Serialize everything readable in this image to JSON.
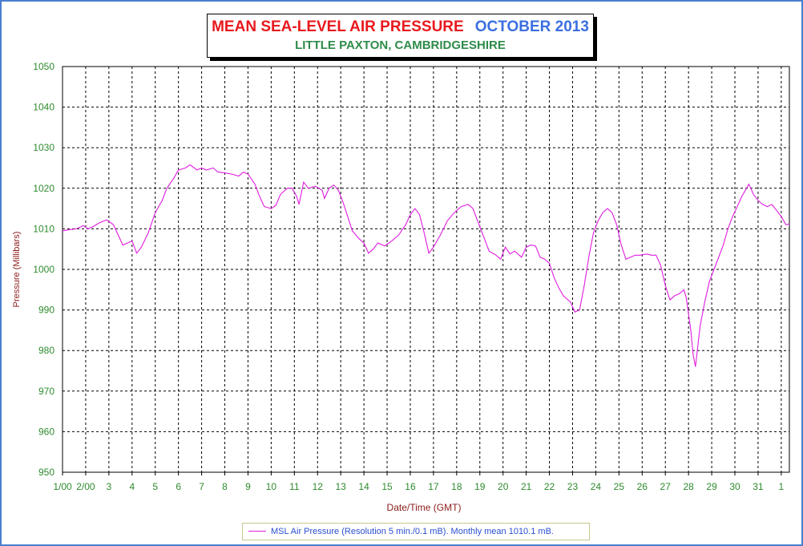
{
  "chart_data": {
    "type": "line",
    "title": "MEAN SEA-LEVEL AIR PRESSURE",
    "title_period": "OCTOBER 2013",
    "subtitle": "LITTLE PAXTON, CAMBRIDGESHIRE",
    "xlabel": "Date/Time (GMT)",
    "ylabel": "Pressure (Millibars)",
    "xlim": [
      1,
      32.35
    ],
    "ylim": [
      950,
      1050
    ],
    "y_ticks": [
      950,
      960,
      970,
      980,
      990,
      1000,
      1010,
      1020,
      1030,
      1040,
      1050
    ],
    "x_ticks": [
      {
        "day": 1,
        "label": "1/00"
      },
      {
        "day": 2,
        "label": "2/00"
      },
      {
        "day": 3,
        "label": "3"
      },
      {
        "day": 4,
        "label": "4"
      },
      {
        "day": 5,
        "label": "5"
      },
      {
        "day": 6,
        "label": "6"
      },
      {
        "day": 7,
        "label": "7"
      },
      {
        "day": 8,
        "label": "8"
      },
      {
        "day": 9,
        "label": "9"
      },
      {
        "day": 10,
        "label": "10"
      },
      {
        "day": 11,
        "label": "11"
      },
      {
        "day": 12,
        "label": "12"
      },
      {
        "day": 13,
        "label": "13"
      },
      {
        "day": 14,
        "label": "14"
      },
      {
        "day": 15,
        "label": "15"
      },
      {
        "day": 16,
        "label": "16"
      },
      {
        "day": 17,
        "label": "17"
      },
      {
        "day": 18,
        "label": "18"
      },
      {
        "day": 19,
        "label": "19"
      },
      {
        "day": 20,
        "label": "20"
      },
      {
        "day": 21,
        "label": "21"
      },
      {
        "day": 22,
        "label": "22"
      },
      {
        "day": 23,
        "label": "23"
      },
      {
        "day": 24,
        "label": "24"
      },
      {
        "day": 25,
        "label": "25"
      },
      {
        "day": 26,
        "label": "26"
      },
      {
        "day": 27,
        "label": "27"
      },
      {
        "day": 28,
        "label": "28"
      },
      {
        "day": 29,
        "label": "29"
      },
      {
        "day": 30,
        "label": "30"
      },
      {
        "day": 31,
        "label": "31"
      },
      {
        "day": 32,
        "label": "1"
      }
    ],
    "grid": true,
    "legend_position": "bottom-center",
    "series": [
      {
        "name": "MSL Air Pressure (Resolution 5 min./0.1 mB). Monthly mean 1010.1 mB.",
        "color": "#e01ce0",
        "points": [
          [
            1.0,
            1009.5
          ],
          [
            1.3,
            1009.8
          ],
          [
            1.6,
            1010.0
          ],
          [
            1.9,
            1010.8
          ],
          [
            2.1,
            1010.0
          ],
          [
            2.3,
            1010.5
          ],
          [
            2.6,
            1011.5
          ],
          [
            2.9,
            1012.2
          ],
          [
            3.2,
            1011.0
          ],
          [
            3.4,
            1008.5
          ],
          [
            3.6,
            1006.0
          ],
          [
            3.8,
            1006.5
          ],
          [
            4.0,
            1007.0
          ],
          [
            4.2,
            1004.0
          ],
          [
            4.4,
            1005.5
          ],
          [
            4.7,
            1009.0
          ],
          [
            5.0,
            1014.0
          ],
          [
            5.3,
            1017.0
          ],
          [
            5.5,
            1020.0
          ],
          [
            5.8,
            1022.5
          ],
          [
            6.0,
            1024.5
          ],
          [
            6.3,
            1025.0
          ],
          [
            6.5,
            1025.8
          ],
          [
            6.8,
            1024.5
          ],
          [
            7.0,
            1025.0
          ],
          [
            7.2,
            1024.5
          ],
          [
            7.5,
            1025.0
          ],
          [
            7.7,
            1024.0
          ],
          [
            8.0,
            1023.8
          ],
          [
            8.3,
            1023.5
          ],
          [
            8.6,
            1023.0
          ],
          [
            8.8,
            1024.0
          ],
          [
            9.0,
            1023.5
          ],
          [
            9.3,
            1021.0
          ],
          [
            9.5,
            1018.0
          ],
          [
            9.7,
            1015.5
          ],
          [
            10.0,
            1015.0
          ],
          [
            10.2,
            1015.8
          ],
          [
            10.4,
            1018.5
          ],
          [
            10.7,
            1020.0
          ],
          [
            10.9,
            1020.0
          ],
          [
            11.1,
            1018.0
          ],
          [
            11.2,
            1016.0
          ],
          [
            11.4,
            1021.5
          ],
          [
            11.6,
            1020.0
          ],
          [
            11.9,
            1020.5
          ],
          [
            12.2,
            1019.5
          ],
          [
            12.3,
            1017.5
          ],
          [
            12.5,
            1020.0
          ],
          [
            12.7,
            1020.8
          ],
          [
            12.9,
            1019.5
          ],
          [
            13.1,
            1016.5
          ],
          [
            13.3,
            1013.0
          ],
          [
            13.5,
            1009.5
          ],
          [
            13.8,
            1007.5
          ],
          [
            14.0,
            1006.5
          ],
          [
            14.2,
            1004.0
          ],
          [
            14.4,
            1005.0
          ],
          [
            14.6,
            1006.5
          ],
          [
            14.9,
            1005.8
          ],
          [
            15.2,
            1007.0
          ],
          [
            15.5,
            1008.5
          ],
          [
            15.8,
            1011.0
          ],
          [
            16.0,
            1013.5
          ],
          [
            16.2,
            1015.0
          ],
          [
            16.4,
            1013.5
          ],
          [
            16.6,
            1009.0
          ],
          [
            16.8,
            1004.0
          ],
          [
            17.0,
            1005.5
          ],
          [
            17.3,
            1008.5
          ],
          [
            17.6,
            1012.0
          ],
          [
            17.9,
            1014.0
          ],
          [
            18.2,
            1015.5
          ],
          [
            18.5,
            1016.0
          ],
          [
            18.7,
            1015.0
          ],
          [
            19.0,
            1010.5
          ],
          [
            19.2,
            1007.5
          ],
          [
            19.4,
            1004.5
          ],
          [
            19.7,
            1003.5
          ],
          [
            19.9,
            1002.5
          ],
          [
            20.1,
            1005.5
          ],
          [
            20.3,
            1003.8
          ],
          [
            20.5,
            1004.5
          ],
          [
            20.8,
            1003.0
          ],
          [
            21.0,
            1005.5
          ],
          [
            21.2,
            1006.0
          ],
          [
            21.4,
            1005.8
          ],
          [
            21.6,
            1003.0
          ],
          [
            21.8,
            1002.5
          ],
          [
            22.0,
            1001.5
          ],
          [
            22.2,
            998.0
          ],
          [
            22.4,
            995.5
          ],
          [
            22.6,
            993.5
          ],
          [
            22.9,
            992.0
          ],
          [
            23.1,
            989.5
          ],
          [
            23.3,
            990.0
          ],
          [
            23.5,
            996.0
          ],
          [
            23.7,
            1003.0
          ],
          [
            23.9,
            1009.0
          ],
          [
            24.1,
            1012.0
          ],
          [
            24.3,
            1014.0
          ],
          [
            24.5,
            1015.0
          ],
          [
            24.7,
            1014.0
          ],
          [
            24.9,
            1011.0
          ],
          [
            25.1,
            1006.0
          ],
          [
            25.3,
            1002.5
          ],
          [
            25.5,
            1003.0
          ],
          [
            25.7,
            1003.5
          ],
          [
            25.9,
            1003.5
          ],
          [
            26.2,
            1003.8
          ],
          [
            26.4,
            1003.5
          ],
          [
            26.6,
            1003.5
          ],
          [
            26.8,
            1001.0
          ],
          [
            27.0,
            996.0
          ],
          [
            27.2,
            992.5
          ],
          [
            27.4,
            993.5
          ],
          [
            27.6,
            994.0
          ],
          [
            27.8,
            995.0
          ],
          [
            27.9,
            993.0
          ],
          [
            28.1,
            985.0
          ],
          [
            28.2,
            979.0
          ],
          [
            28.3,
            976.0
          ],
          [
            28.5,
            986.0
          ],
          [
            28.7,
            992.0
          ],
          [
            28.9,
            997.0
          ],
          [
            29.1,
            1000.0
          ],
          [
            29.3,
            1003.0
          ],
          [
            29.5,
            1006.0
          ],
          [
            29.7,
            1010.0
          ],
          [
            29.9,
            1013.0
          ],
          [
            30.1,
            1015.5
          ],
          [
            30.3,
            1018.0
          ],
          [
            30.5,
            1020.0
          ],
          [
            30.6,
            1021.0
          ],
          [
            30.8,
            1018.5
          ],
          [
            31.0,
            1017.0
          ],
          [
            31.2,
            1016.0
          ],
          [
            31.4,
            1015.5
          ],
          [
            31.6,
            1016.0
          ],
          [
            31.8,
            1014.5
          ],
          [
            32.0,
            1013.0
          ],
          [
            32.2,
            1011.0
          ],
          [
            32.35,
            1011.2
          ]
        ]
      }
    ]
  }
}
